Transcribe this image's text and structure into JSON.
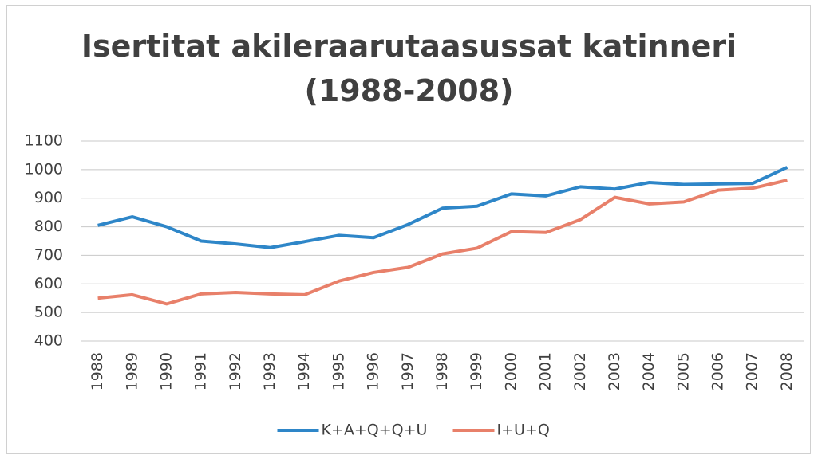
{
  "chart_data": {
    "type": "line",
    "title": "Isertitat akileraarutaasussat katinneri (1988-2008)",
    "categories": [
      "1988",
      "1989",
      "1990",
      "1991",
      "1992",
      "1993",
      "1994",
      "1995",
      "1996",
      "1997",
      "1998",
      "1999",
      "2000",
      "2001",
      "2002",
      "2003",
      "2004",
      "2005",
      "2006",
      "2007",
      "2008"
    ],
    "series": [
      {
        "name": "K+A+Q+Q+U",
        "color": "#2e86c8",
        "values": [
          805,
          835,
          800,
          750,
          740,
          727,
          748,
          770,
          762,
          808,
          865,
          872,
          915,
          908,
          940,
          932,
          955,
          948,
          950,
          952,
          1008
        ]
      },
      {
        "name": "I+U+Q",
        "color": "#e8806a",
        "values": [
          550,
          562,
          530,
          565,
          570,
          565,
          562,
          610,
          640,
          658,
          705,
          725,
          783,
          780,
          825,
          903,
          880,
          887,
          928,
          935,
          963
        ]
      }
    ],
    "ylim": [
      400,
      1100
    ],
    "yticks": [
      400,
      500,
      600,
      700,
      800,
      900,
      1000,
      1100
    ],
    "grid": true,
    "legend": "bottom"
  }
}
